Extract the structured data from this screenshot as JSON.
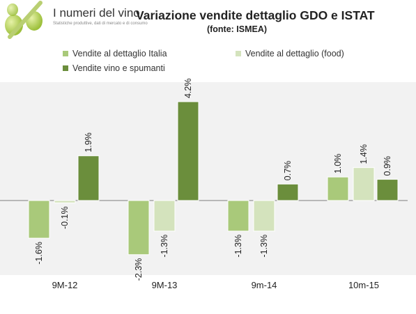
{
  "logo": {
    "title": "I numeri del vino",
    "subtitle": "Statistiche produttive, dati di mercato e di consumo",
    "icon": "percent-grapes-logo"
  },
  "chart_data": {
    "type": "bar",
    "title": "Variazione vendite dettaglio GDO e ISTAT",
    "subtitle": "(fonte: ISMEA)",
    "categories": [
      "9M-12",
      "9M-13",
      "9m-14",
      "10m-15"
    ],
    "series": [
      {
        "name": "Vendite al dettaglio Italia",
        "color": "#a9c97a",
        "values": [
          -1.6,
          -2.3,
          -1.3,
          1.0
        ],
        "labels": [
          "-1.6%",
          "-2.3%",
          "-1.3%",
          "1.0%"
        ]
      },
      {
        "name": "Vendite al dettaglio (food)",
        "color": "#d4e3bd",
        "values": [
          -0.1,
          -1.3,
          -1.3,
          1.4
        ],
        "labels": [
          "-0.1%",
          "-1.3%",
          "-1.3%",
          "1.4%"
        ]
      },
      {
        "name": "Vendite vino e spumanti",
        "color": "#6b8e3c",
        "values": [
          1.9,
          4.2,
          0.7,
          0.9
        ],
        "labels": [
          "1.9%",
          "4.2%",
          "0.7%",
          "0.9%"
        ]
      }
    ],
    "ylim": [
      -2.3,
      4.2
    ],
    "grid": false,
    "legend_position": "top"
  }
}
